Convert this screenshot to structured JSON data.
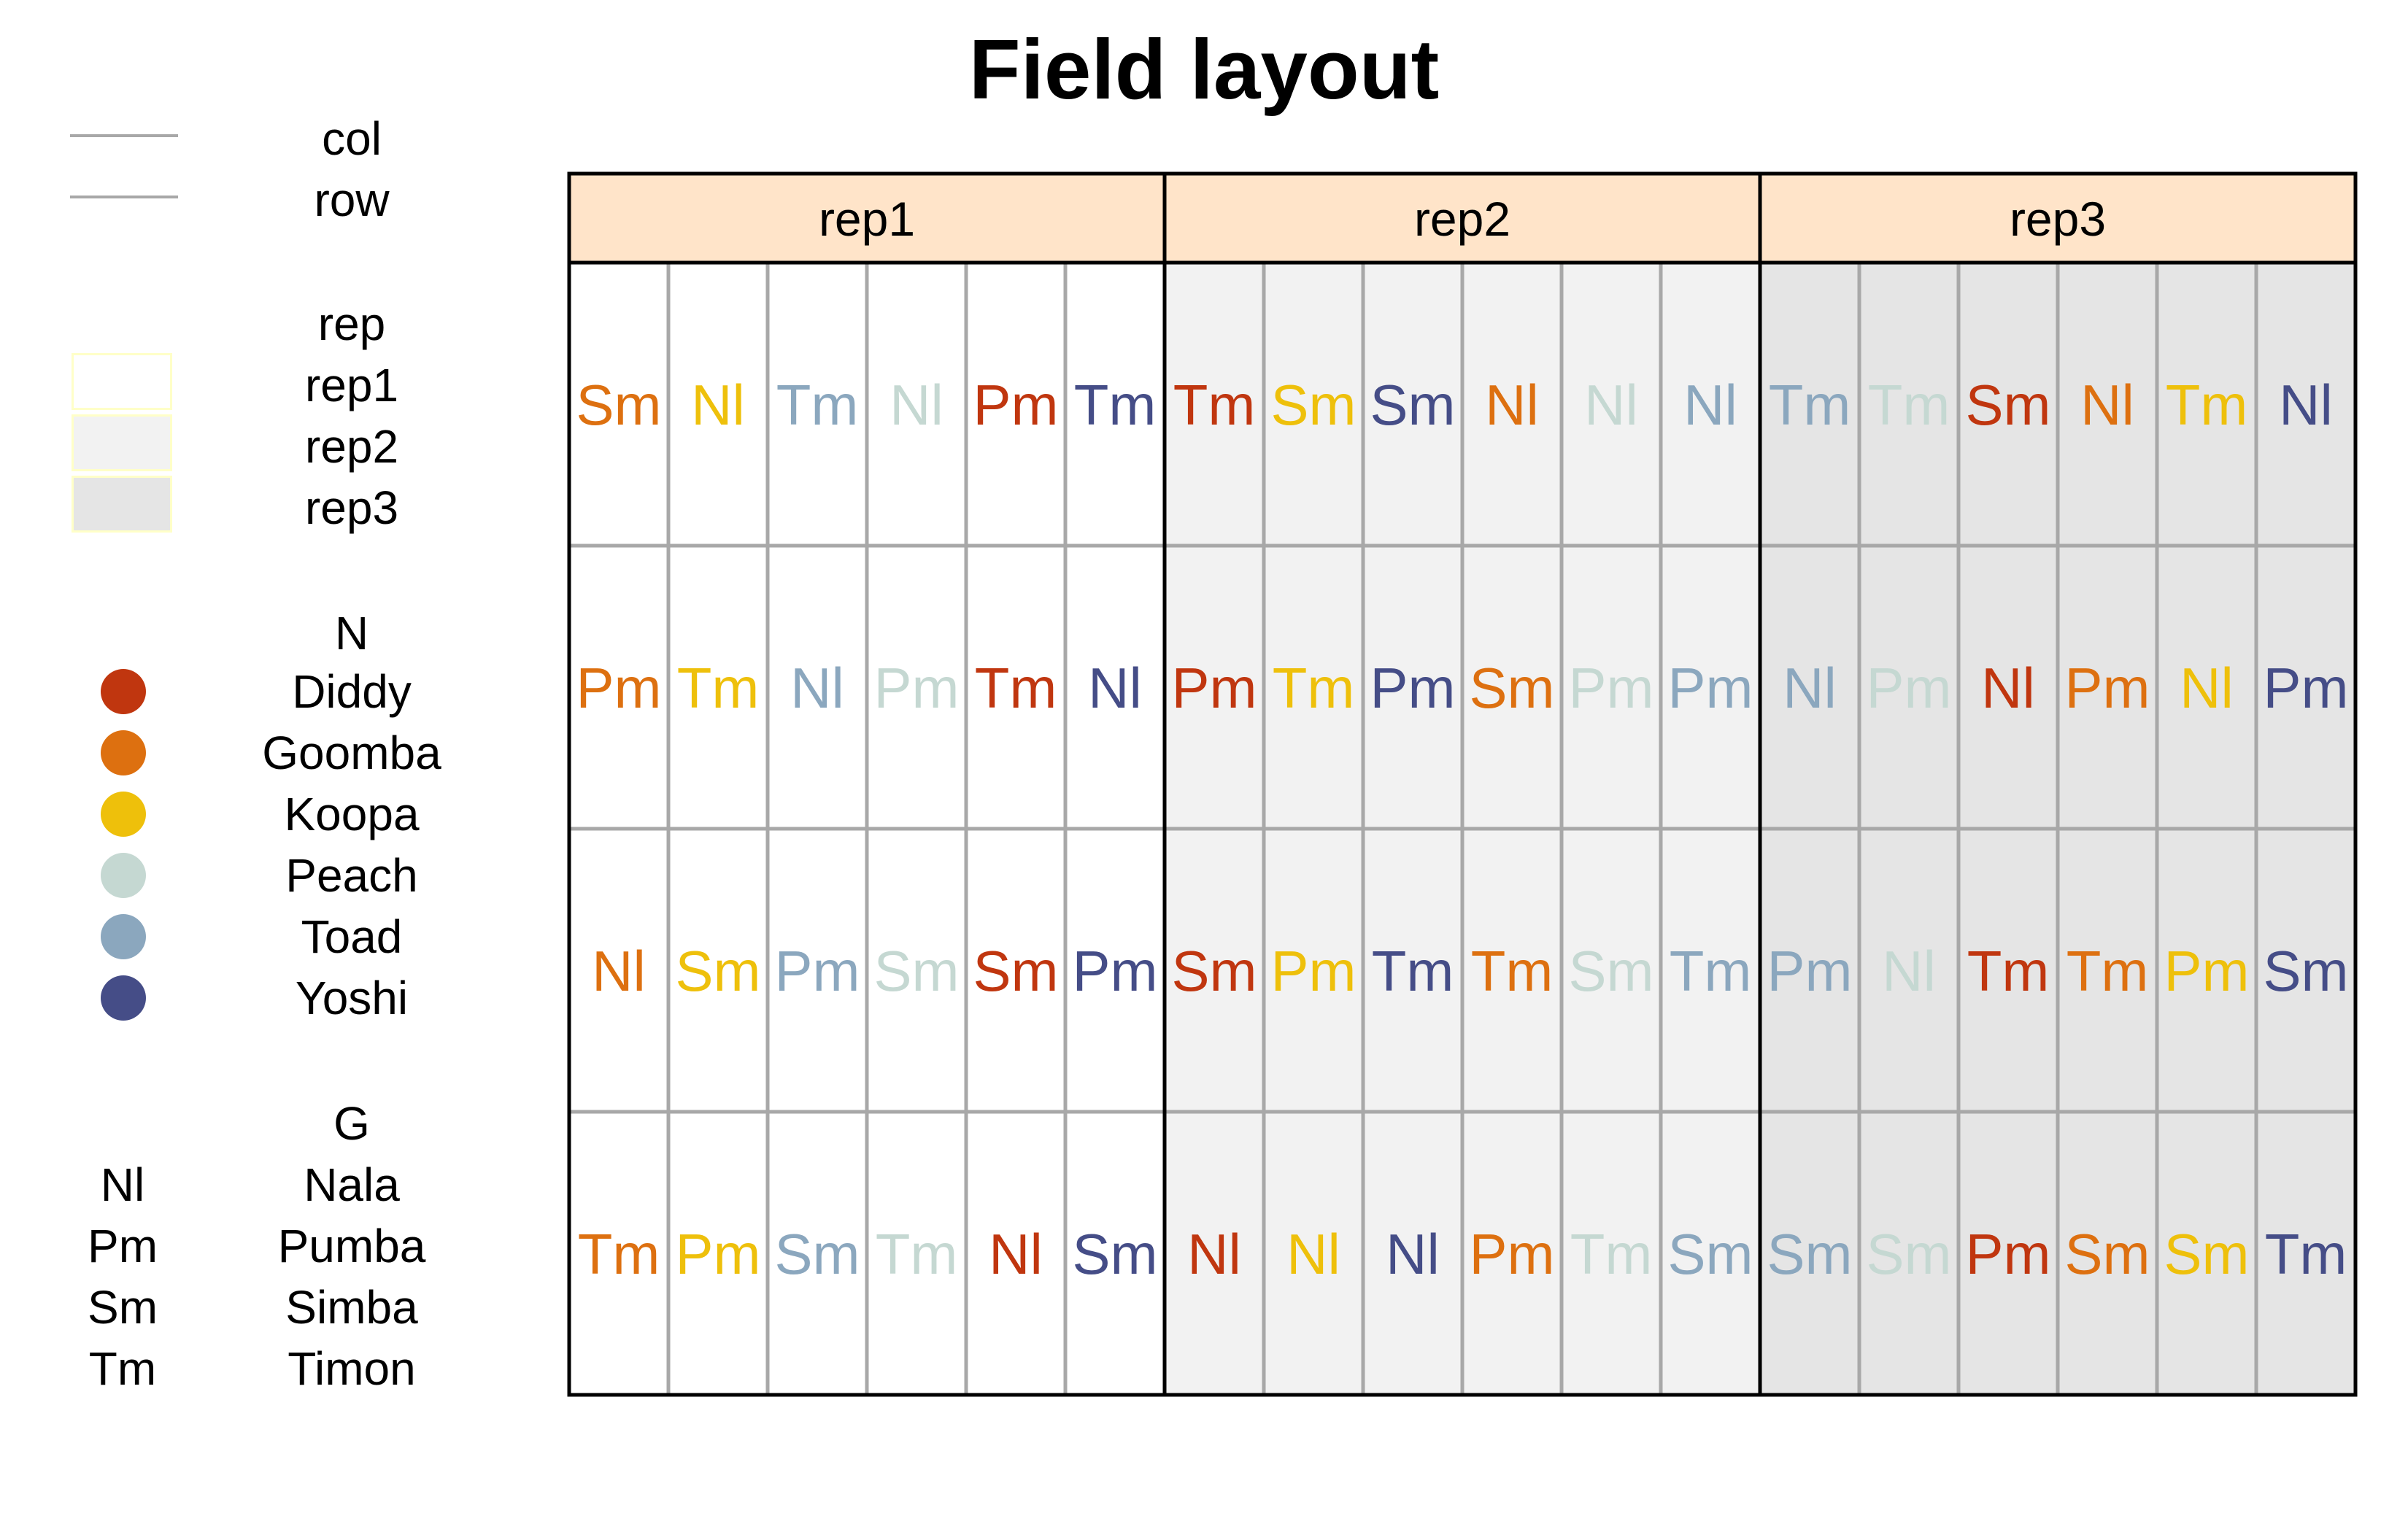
{
  "title": "Field layout",
  "legend": {
    "lines": {
      "items": [
        {
          "label": "col",
          "color": "#a8a8a8"
        },
        {
          "label": "row",
          "color": "#a8a8a8"
        }
      ]
    },
    "rep": {
      "title": "rep",
      "items": [
        {
          "label": "rep1",
          "fill": "#ffffff"
        },
        {
          "label": "rep2",
          "fill": "#f2f2f2"
        },
        {
          "label": "rep3",
          "fill": "#e5e5e5"
        }
      ]
    },
    "N": {
      "title": "N",
      "items": [
        {
          "label": "Diddy",
          "color": "#c0360f"
        },
        {
          "label": "Goomba",
          "color": "#dd7010"
        },
        {
          "label": "Koopa",
          "color": "#eec00b"
        },
        {
          "label": "Peach",
          "color": "#c5d8d2"
        },
        {
          "label": "Toad",
          "color": "#8ba7be"
        },
        {
          "label": "Yoshi",
          "color": "#454d87"
        }
      ]
    },
    "G": {
      "title": "G",
      "items": [
        {
          "code": "Nl",
          "label": "Nala"
        },
        {
          "code": "Pm",
          "label": "Pumba"
        },
        {
          "code": "Sm",
          "label": "Simba"
        },
        {
          "code": "Tm",
          "label": "Timon"
        }
      ]
    }
  },
  "facet_strip_fill": "#ffe4c9",
  "grid_line_color": "#a8a8a8",
  "facets": [
    {
      "label": "rep1",
      "fill": "#ffffff",
      "rows": [
        [
          [
            "Sm",
            "Goomba"
          ],
          [
            "Nl",
            "Koopa"
          ],
          [
            "Tm",
            "Toad"
          ],
          [
            "Nl",
            "Peach"
          ],
          [
            "Pm",
            "Diddy"
          ],
          [
            "Tm",
            "Yoshi"
          ]
        ],
        [
          [
            "Pm",
            "Goomba"
          ],
          [
            "Tm",
            "Koopa"
          ],
          [
            "Nl",
            "Toad"
          ],
          [
            "Pm",
            "Peach"
          ],
          [
            "Tm",
            "Diddy"
          ],
          [
            "Nl",
            "Yoshi"
          ]
        ],
        [
          [
            "Nl",
            "Goomba"
          ],
          [
            "Sm",
            "Koopa"
          ],
          [
            "Pm",
            "Toad"
          ],
          [
            "Sm",
            "Peach"
          ],
          [
            "Sm",
            "Diddy"
          ],
          [
            "Pm",
            "Yoshi"
          ]
        ],
        [
          [
            "Tm",
            "Goomba"
          ],
          [
            "Pm",
            "Koopa"
          ],
          [
            "Sm",
            "Toad"
          ],
          [
            "Tm",
            "Peach"
          ],
          [
            "Nl",
            "Diddy"
          ],
          [
            "Sm",
            "Yoshi"
          ]
        ]
      ]
    },
    {
      "label": "rep2",
      "fill": "#f2f2f2",
      "rows": [
        [
          [
            "Tm",
            "Diddy"
          ],
          [
            "Sm",
            "Koopa"
          ],
          [
            "Sm",
            "Yoshi"
          ],
          [
            "Nl",
            "Goomba"
          ],
          [
            "Nl",
            "Peach"
          ],
          [
            "Nl",
            "Toad"
          ]
        ],
        [
          [
            "Pm",
            "Diddy"
          ],
          [
            "Tm",
            "Koopa"
          ],
          [
            "Pm",
            "Yoshi"
          ],
          [
            "Sm",
            "Goomba"
          ],
          [
            "Pm",
            "Peach"
          ],
          [
            "Pm",
            "Toad"
          ]
        ],
        [
          [
            "Sm",
            "Diddy"
          ],
          [
            "Pm",
            "Koopa"
          ],
          [
            "Tm",
            "Yoshi"
          ],
          [
            "Tm",
            "Goomba"
          ],
          [
            "Sm",
            "Peach"
          ],
          [
            "Tm",
            "Toad"
          ]
        ],
        [
          [
            "Nl",
            "Diddy"
          ],
          [
            "Nl",
            "Koopa"
          ],
          [
            "Nl",
            "Yoshi"
          ],
          [
            "Pm",
            "Goomba"
          ],
          [
            "Tm",
            "Peach"
          ],
          [
            "Sm",
            "Toad"
          ]
        ]
      ]
    },
    {
      "label": "rep3",
      "fill": "#e5e5e5",
      "rows": [
        [
          [
            "Tm",
            "Toad"
          ],
          [
            "Tm",
            "Peach"
          ],
          [
            "Sm",
            "Diddy"
          ],
          [
            "Nl",
            "Goomba"
          ],
          [
            "Tm",
            "Koopa"
          ],
          [
            "Nl",
            "Yoshi"
          ]
        ],
        [
          [
            "Nl",
            "Toad"
          ],
          [
            "Pm",
            "Peach"
          ],
          [
            "Nl",
            "Diddy"
          ],
          [
            "Pm",
            "Goomba"
          ],
          [
            "Nl",
            "Koopa"
          ],
          [
            "Pm",
            "Yoshi"
          ]
        ],
        [
          [
            "Pm",
            "Toad"
          ],
          [
            "Nl",
            "Peach"
          ],
          [
            "Tm",
            "Diddy"
          ],
          [
            "Tm",
            "Goomba"
          ],
          [
            "Pm",
            "Koopa"
          ],
          [
            "Sm",
            "Yoshi"
          ]
        ],
        [
          [
            "Sm",
            "Toad"
          ],
          [
            "Sm",
            "Peach"
          ],
          [
            "Pm",
            "Diddy"
          ],
          [
            "Sm",
            "Goomba"
          ],
          [
            "Sm",
            "Koopa"
          ],
          [
            "Tm",
            "Yoshi"
          ]
        ]
      ]
    }
  ]
}
